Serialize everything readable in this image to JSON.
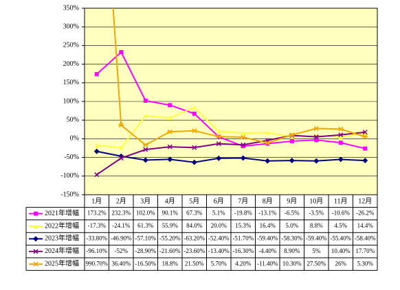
{
  "chart_data": {
    "type": "line",
    "categories": [
      "1月",
      "2月",
      "3月",
      "4月",
      "5月",
      "6月",
      "7月",
      "8月",
      "9月",
      "10月",
      "11月",
      "12月"
    ],
    "ylim": [
      -150,
      350
    ],
    "yticks": [
      {
        "value": -150,
        "label": "-150%"
      },
      {
        "value": -100,
        "label": "-100%"
      },
      {
        "value": -50,
        "label": "-50%"
      },
      {
        "value": 0,
        "label": "0%"
      },
      {
        "value": 50,
        "label": "50%"
      },
      {
        "value": 100,
        "label": "100%"
      },
      {
        "value": 150,
        "label": "150%"
      },
      {
        "value": 200,
        "label": "200%"
      },
      {
        "value": 250,
        "label": "250%"
      },
      {
        "value": 300,
        "label": "300%"
      },
      {
        "value": 350,
        "label": "350%"
      }
    ],
    "grid": true,
    "background": "#ffffc0",
    "series": [
      {
        "name": "2021年增幅",
        "color": "#ff00ff",
        "marker": "square",
        "values": [
          173.2,
          232.3,
          102.0,
          90.1,
          67.3,
          5.1,
          -19.8,
          -13.1,
          -6.5,
          -3.5,
          -10.6,
          -26.2
        ],
        "value_labels": [
          "173.2%",
          "232.3%",
          "102.0%",
          "90.1%",
          "67.3%",
          "5.1%",
          "-19.8%",
          "-13.1%",
          "-6.5%",
          "-3.5%",
          "-10.6%",
          "-26.2%"
        ]
      },
      {
        "name": "2022年增幅",
        "color": "#ffff44",
        "marker": "triangle",
        "values": [
          -17.3,
          -24.1,
          61.3,
          55.9,
          84.0,
          20.0,
          15.3,
          16.4,
          5.0,
          8.8,
          4.5,
          14.4
        ],
        "value_labels": [
          "-17.3%",
          "-24.1%",
          "61.3%",
          "55.9%",
          "84.0%",
          "20.0%",
          "15.3%",
          "16.4%",
          "5.0%",
          "8.8%",
          "4.5%",
          "14.4%"
        ]
      },
      {
        "name": "2023年增幅",
        "color": "#000080",
        "marker": "diamond",
        "values": [
          -33.8,
          -46.9,
          -57.1,
          -55.2,
          -63.2,
          -52.4,
          -51.7,
          -59.4,
          -58.3,
          -59.4,
          -55.4,
          -58.4
        ],
        "value_labels": [
          "-33.80%",
          "-46.90%",
          "-57.10%",
          "-55.20%",
          "-63.20%",
          "-52.40%",
          "-51.70%",
          "-59.40%",
          "-58.30%",
          "-59.40%",
          "-55.40%",
          "-58.40%"
        ]
      },
      {
        "name": "2024年增幅",
        "color": "#800080",
        "marker": "x",
        "values": [
          -96.1,
          -52,
          -28.9,
          -21.6,
          -23.6,
          -13.4,
          -16.3,
          -4.4,
          8.9,
          5,
          10.4,
          17.7
        ],
        "value_labels": [
          "-96.10%",
          "-52%",
          "-28.90%",
          "-21.60%",
          "-23.60%",
          "-13.40%",
          "-16.30%",
          "-4.40%",
          "8.90%",
          "5%",
          "10.40%",
          "17.70%"
        ]
      },
      {
        "name": "2025年增幅",
        "color": "#f0a800",
        "marker": "star",
        "values": [
          990.7,
          36.4,
          -16.5,
          18.8,
          21.5,
          5.7,
          4.2,
          -11.4,
          10.3,
          27.5,
          26,
          5.3
        ],
        "value_labels": [
          "990.70%",
          "36.40%",
          "-16.50%",
          "18.8%",
          "21.50%",
          "5.70%",
          "4.20%",
          "-11.40%",
          "10.30%",
          "27.50%",
          "26%",
          "5.30%"
        ]
      }
    ]
  }
}
